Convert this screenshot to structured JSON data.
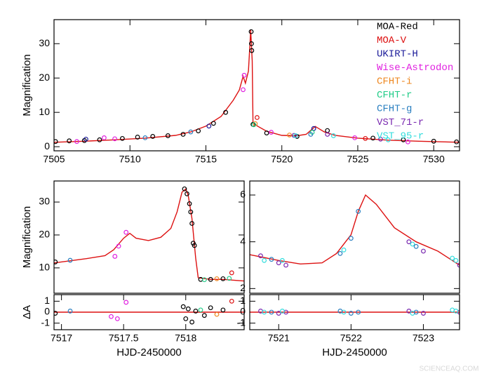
{
  "chart_data": [
    {
      "type": "scatter",
      "y_label": "Magnification",
      "legend": "upper right",
      "xlim": [
        7505,
        7531.7
      ],
      "ylim": [
        -1.2,
        37
      ],
      "xticks": [
        7505,
        7510,
        7515,
        7520,
        7525,
        7530
      ],
      "yticks": [
        0,
        10,
        20,
        30
      ],
      "series": [
        {
          "mode": "line",
          "color": "#dd1111",
          "x": [
            7505,
            7507,
            7509,
            7511,
            7513,
            7514,
            7515,
            7516,
            7516.8,
            7517.2,
            7517.45,
            7517.6,
            7517.8,
            7517.9,
            7517.95,
            7518.05,
            7518.1,
            7518.4,
            7519,
            7520,
            7521,
            7521.6,
            7522.2,
            7522.8,
            7523.5,
            7525,
            7527,
            7529,
            7531.7
          ],
          "values": [
            1.3,
            1.6,
            2.0,
            2.5,
            3.3,
            4.3,
            6.0,
            8.8,
            13.5,
            16.5,
            20.5,
            18.5,
            22,
            30,
            34,
            25,
            7,
            6,
            4.5,
            3.3,
            3.2,
            3.6,
            5.9,
            4.3,
            3.3,
            2.5,
            1.9,
            1.6,
            1.3
          ]
        },
        {
          "name": "MOA-Red",
          "mode": "points",
          "color": "#000000",
          "x": [
            7505.1,
            7506,
            7507,
            7508,
            7509.5,
            7510.5,
            7511.5,
            7512.5,
            7513.5,
            7514.5,
            7515.5,
            7516.3,
            7517.98,
            7518.0,
            7518.02,
            7518.1,
            7519,
            7521,
            7523,
            7526,
            7528,
            7530,
            7531.5
          ],
          "values": [
            1.5,
            1.7,
            1.8,
            2.0,
            2.4,
            2.8,
            3.0,
            3.2,
            3.6,
            4.6,
            6.8,
            10.0,
            33.5,
            30,
            28,
            6.5,
            4.0,
            3.0,
            4.7,
            2.5,
            2.0,
            1.6,
            1.4
          ]
        },
        {
          "name": "MOA-V",
          "mode": "points",
          "color": "#dd1111",
          "x": [
            7518.37,
            7525.5
          ],
          "values": [
            8.5,
            2.4
          ]
        },
        {
          "name": "UKIRT-H",
          "mode": "points",
          "color": "#1a1a99",
          "x": [
            7507.1,
            7515.2,
            7522.1
          ],
          "values": [
            2.2,
            6.0,
            5.3
          ]
        },
        {
          "name": "Wise-Astrodon",
          "mode": "points",
          "color": "#e020e0",
          "x": [
            7506.5,
            7508.3,
            7509,
            7517.45,
            7517.52,
            7519.3,
            7524.8,
            7528.3
          ],
          "values": [
            1.5,
            2.6,
            2.3,
            16.6,
            20.8,
            4.2,
            2.6,
            1.4
          ]
        },
        {
          "name": "CFHT-i",
          "mode": "points",
          "color": "#ee8822",
          "x": [
            7518.25,
            7520.5
          ],
          "values": [
            6.7,
            3.4
          ]
        },
        {
          "name": "CFHT-r",
          "mode": "points",
          "color": "#22cc88",
          "x": [
            7518.15,
            7522.0
          ],
          "values": [
            6.4,
            4.2
          ]
        },
        {
          "name": "CFHT-g",
          "mode": "points",
          "color": "#2a7fc0",
          "x": [
            7511,
            7514,
            7521.9
          ],
          "values": [
            2.6,
            4.3,
            3.6
          ]
        },
        {
          "name": "VST_71-r",
          "mode": "points",
          "color": "#7a2ab0",
          "x": [
            7520.8,
            7523,
            7526.5
          ],
          "values": [
            3.3,
            3.6,
            2.2
          ]
        },
        {
          "name": "VST_95-r",
          "mode": "points",
          "color": "#33dddd",
          "x": [
            7520.9,
            7523.4,
            7527
          ],
          "values": [
            3.2,
            3.2,
            2.0
          ]
        }
      ]
    },
    {
      "type": "scatter",
      "y_label": "Magnification",
      "xlim": [
        7516.94,
        7518.47
      ],
      "ylim": [
        2.3,
        36.4
      ],
      "yticks": [
        10,
        20,
        30
      ],
      "series": [
        {
          "mode": "line",
          "color": "#dd1111",
          "x": [
            7516.94,
            7517.1,
            7517.2,
            7517.35,
            7517.42,
            7517.5,
            7517.55,
            7517.6,
            7517.7,
            7517.8,
            7517.88,
            7517.93,
            7517.97,
            7518.0,
            7518.02,
            7518.05,
            7518.08,
            7518.1,
            7518.2,
            7518.3,
            7518.47
          ],
          "values": [
            11.5,
            12.3,
            12.8,
            13.7,
            15.5,
            19,
            20.5,
            19,
            18.3,
            19.3,
            22,
            27,
            33,
            34,
            32,
            25,
            13,
            7,
            6.5,
            6.5,
            6.0
          ]
        },
        {
          "mode": "points",
          "color": "#000000",
          "x": [
            7516.95,
            7517.99,
            7518.01,
            7518.03,
            7518.04,
            7518.05,
            7518.06,
            7518.07,
            7518.12,
            7518.2,
            7518.3
          ],
          "values": [
            11.8,
            34.0,
            32.5,
            29.5,
            27,
            23.5,
            17.5,
            16.8,
            6.5,
            6.5,
            6.7
          ]
        },
        {
          "mode": "points",
          "color": "#2a7fc0",
          "x": [
            7517.07
          ],
          "values": [
            12.3
          ]
        },
        {
          "mode": "points",
          "color": "#e020e0",
          "x": [
            7517.43,
            7517.46,
            7517.52
          ],
          "values": [
            13.5,
            16.6,
            20.8
          ]
        },
        {
          "mode": "points",
          "color": "#22cc88",
          "x": [
            7518.15,
            7518.35
          ],
          "values": [
            6.4,
            6.8
          ]
        },
        {
          "mode": "points",
          "color": "#ee8822",
          "x": [
            7518.25
          ],
          "values": [
            6.7
          ]
        },
        {
          "mode": "points",
          "color": "#dd1111",
          "x": [
            7518.37
          ],
          "values": [
            8.5
          ]
        }
      ]
    },
    {
      "type": "scatter",
      "y_label": "ΔA",
      "x_label": "HJD-2450000",
      "xlim": [
        7516.94,
        7518.47
      ],
      "ylim": [
        -1.6,
        1.6
      ],
      "xticks": [
        7517,
        7517.5,
        7518
      ],
      "yticks": [
        -1,
        0,
        1
      ],
      "series": [
        {
          "mode": "line",
          "color": "#dd1111",
          "x": [
            7516.94,
            7518.47
          ],
          "values": [
            0,
            0
          ]
        },
        {
          "mode": "points",
          "color": "#000000",
          "x": [
            7516.95,
            7517.98,
            7518.0,
            7518.02,
            7518.05,
            7518.08,
            7518.15,
            7518.2,
            7518.3
          ],
          "values": [
            -0.1,
            0.5,
            -0.6,
            0.3,
            -0.9,
            0.1,
            -0.3,
            0.4,
            0.2
          ]
        },
        {
          "mode": "points",
          "color": "#2a7fc0",
          "x": [
            7517.07
          ],
          "values": [
            0.1
          ]
        },
        {
          "mode": "points",
          "color": "#e020e0",
          "x": [
            7517.4,
            7517.45,
            7517.52
          ],
          "values": [
            -0.4,
            -0.6,
            0.9
          ]
        },
        {
          "mode": "points",
          "color": "#22cc88",
          "x": [
            7518.12
          ],
          "values": [
            0.2
          ]
        },
        {
          "mode": "points",
          "color": "#ee8822",
          "x": [
            7518.25
          ],
          "values": [
            -0.2
          ]
        },
        {
          "mode": "points",
          "color": "#dd1111",
          "x": [
            7518.37
          ],
          "values": [
            1.0
          ]
        }
      ]
    },
    {
      "type": "scatter",
      "xlim": [
        7520.6,
        7523.5
      ],
      "ylim": [
        1.8,
        6.6
      ],
      "yticks": [
        2,
        4,
        6
      ],
      "series": [
        {
          "mode": "line",
          "color": "#dd1111",
          "x": [
            7520.6,
            7521,
            7521.3,
            7521.6,
            7521.8,
            7522.0,
            7522.1,
            7522.2,
            7522.35,
            7522.6,
            7522.9,
            7523.2,
            7523.5
          ],
          "values": [
            3.45,
            3.2,
            3.05,
            3.1,
            3.5,
            4.3,
            5.3,
            6.0,
            5.6,
            4.6,
            4.0,
            3.6,
            3.0
          ]
        },
        {
          "mode": "points",
          "color": "#7a2ab0",
          "x": [
            7520.75,
            7521.0,
            7521.1,
            7522.8,
            7523.0,
            7523.5
          ],
          "values": [
            3.4,
            3.1,
            3.0,
            4.0,
            3.6,
            3.0
          ]
        },
        {
          "mode": "points",
          "color": "#33dddd",
          "x": [
            7520.8,
            7521.05,
            7521.9,
            7522.85,
            7523.4,
            7523.45
          ],
          "values": [
            3.2,
            3.2,
            3.65,
            3.9,
            3.3,
            3.2
          ]
        },
        {
          "mode": "points",
          "color": "#2a7fc0",
          "x": [
            7520.9,
            7521.85,
            7522.0,
            7522.1,
            7522.9
          ],
          "values": [
            3.25,
            3.5,
            4.15,
            5.3,
            3.8
          ]
        }
      ]
    },
    {
      "type": "scatter",
      "x_label": "HJD-2450000",
      "xlim": [
        7520.6,
        7523.5
      ],
      "ylim": [
        -1.6,
        1.6
      ],
      "xticks": [
        7521,
        7522,
        7523
      ],
      "yticks": [
        -1,
        0,
        1
      ],
      "series": [
        {
          "mode": "line",
          "color": "#dd1111",
          "x": [
            7520.6,
            7523.5
          ],
          "values": [
            0,
            0
          ]
        },
        {
          "mode": "points",
          "color": "#7a2ab0",
          "x": [
            7520.75,
            7521.0,
            7521.1,
            7522.8,
            7523.0,
            7523.5
          ],
          "values": [
            0.1,
            -0.1,
            0.0,
            0.1,
            -0.1,
            0.0
          ]
        },
        {
          "mode": "points",
          "color": "#33dddd",
          "x": [
            7520.8,
            7521.05,
            7521.9,
            7522.85,
            7523.4,
            7523.45
          ],
          "values": [
            0.0,
            0.1,
            0.0,
            -0.1,
            0.2,
            0.1
          ]
        },
        {
          "mode": "points",
          "color": "#2a7fc0",
          "x": [
            7520.9,
            7521.85,
            7522.0,
            7522.1,
            7522.9
          ],
          "values": [
            0.0,
            0.1,
            -0.1,
            0.0,
            0.0
          ]
        }
      ]
    }
  ],
  "watermark": "SCIENCEAQ.COM"
}
